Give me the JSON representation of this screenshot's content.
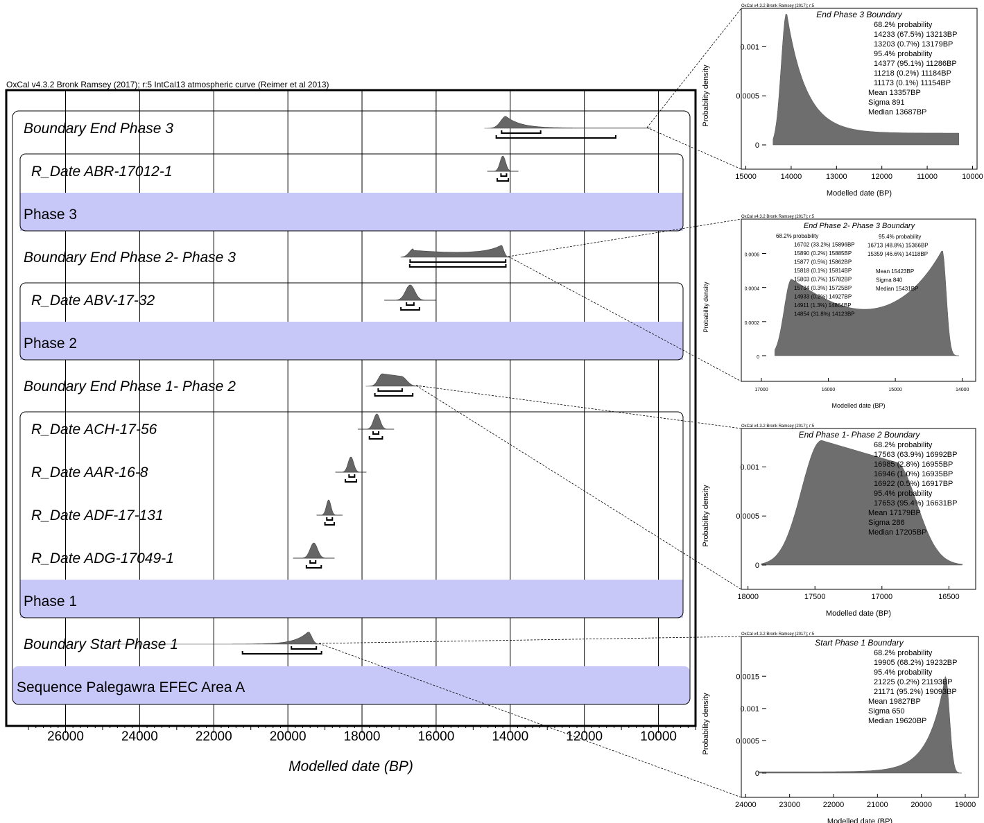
{
  "header": "OxCal v4.3.2 Bronk Ramsey (2017); r:5 IntCal13 atmospheric curve (Reimer et al 2013)",
  "main": {
    "xlabel": "Modelled date (BP)",
    "ticks": [
      "26000",
      "24000",
      "22000",
      "20000",
      "18000",
      "16000",
      "14000",
      "12000",
      "10000"
    ],
    "tick_values": [
      26000,
      24000,
      22000,
      20000,
      18000,
      16000,
      14000,
      12000,
      10000
    ],
    "xlim": [
      27600,
      9000
    ]
  },
  "rows": [
    {
      "label": "Boundary End Phase 3",
      "kind": "boundary"
    },
    {
      "label": "R_Date ABR-17012-1",
      "kind": "date"
    },
    {
      "label": "Phase 3",
      "kind": "phase"
    },
    {
      "label": "Boundary End Phase 2- Phase 3",
      "kind": "boundary"
    },
    {
      "label": "R_Date ABV-17-32",
      "kind": "date"
    },
    {
      "label": "Phase 2",
      "kind": "phase"
    },
    {
      "label": "Boundary End Phase 1- Phase 2",
      "kind": "boundary"
    },
    {
      "label": "R_Date ACH-17-56",
      "kind": "date"
    },
    {
      "label": "R_Date AAR-16-8",
      "kind": "date"
    },
    {
      "label": "R_Date ADF-17-131",
      "kind": "date"
    },
    {
      "label": "R_Date ADG-17049-1",
      "kind": "date"
    },
    {
      "label": "Phase 1",
      "kind": "phase"
    },
    {
      "label": "Boundary Start Phase 1",
      "kind": "boundary"
    },
    {
      "label": "Sequence Palegawra EFEC Area A",
      "kind": "sequence"
    }
  ],
  "insets": [
    {
      "title": "End Phase 3 Boundary",
      "ylabel": "Probability density",
      "xlabel": "Modelled date (BP)",
      "xticks": [
        "15000",
        "14000",
        "13000",
        "12000",
        "11000",
        "10000"
      ],
      "yticks": [
        "0.001",
        "0.0005",
        "0"
      ],
      "lines": [
        "68.2% probability",
        "14233 (67.5%) 13213BP",
        "13203 (0.7%) 13179BP",
        "95.4% probability",
        "14377 (95.1%) 11286BP",
        "11218 (0.2%) 11184BP",
        "11173 (0.1%) 11154BP",
        "Mean 13357BP",
        "Sigma 891",
        "Median 13687BP"
      ]
    },
    {
      "header": "OxCal v4.3.2 Bronk Ramsey (2017); r:5",
      "title": "End Phase 2- Phase 3 Boundary",
      "ylabel": "Probability density",
      "xlabel": "Modelled date (BP)",
      "xticks": [
        "17000",
        "16000",
        "15000",
        "14000"
      ],
      "yticks": [
        "0.0006",
        "0.0004",
        "0.0002",
        "0"
      ],
      "col1": [
        "68.2% probability",
        "16702 (33.2%) 15896BP",
        "15890 (0.2%) 15885BP",
        "15877 (0.5%) 15862BP",
        "15818 (0.1%) 15814BP",
        "15803 (0.7%) 15782BP",
        "15734 (0.3%) 15725BP",
        "14933 (0.2%) 14927BP",
        "14911 (1.3%) 14864BP",
        "14854 (31.8%) 14123BP"
      ],
      "col2": [
        "95.4% probability",
        "16713 (48.8%) 15366BP",
        "15359 (46.6%) 14118BP",
        "",
        "Mean 15423BP",
        "Sigma 840",
        "Median 15431BP"
      ]
    },
    {
      "header": "OxCal v4.3.2 Bronk Ramsey (2017); r:5",
      "title": "End Phase 1- Phase 2 Boundary",
      "ylabel": "Probability density",
      "xlabel": "Modelled date (BP)",
      "xticks": [
        "18000",
        "17500",
        "17000",
        "16500"
      ],
      "yticks": [
        "0.001",
        "0.0005",
        "0"
      ],
      "lines": [
        "68.2% probability",
        "17563 (63.9%) 16992BP",
        "16985 (2.8%) 16955BP",
        "16946 (1.0%) 16935BP",
        "16922 (0.5%) 16917BP",
        "95.4% probability",
        "17653 (95.4%) 16631BP",
        "Mean 17179BP",
        "Sigma 286",
        "Median 17205BP"
      ]
    },
    {
      "header": "OxCal v4.3.2 Bronk Ramsey (2017); r:5",
      "title": "Start Phase 1 Boundary",
      "ylabel": "Probability density",
      "xlabel": "Modelled date (BP)",
      "xticks": [
        "24000",
        "23000",
        "22000",
        "21000",
        "20000",
        "19000"
      ],
      "yticks": [
        "0.0015",
        "0.001",
        "0.0005",
        "0"
      ],
      "lines": [
        "68.2% probability",
        "19905 (68.2%) 19232BP",
        "95.4% probability",
        "21225 (0.2%) 21193BP",
        "21171 (95.2%) 19093BP",
        "Mean 19827BP",
        "Sigma 650",
        "Median 19620BP"
      ]
    }
  ],
  "chart_data": {
    "type": "area",
    "xlabel": "Modelled date (BP)",
    "xlim": [
      27600,
      9000
    ],
    "series": [
      {
        "name": "Boundary End Phase 3",
        "peak": 14100,
        "range95": [
          14377,
          11154
        ],
        "range68": [
          14233,
          13179
        ],
        "mean": 13357,
        "median": 13687
      },
      {
        "name": "R_Date ABR-17012-1",
        "peak": 14200,
        "range95": [
          14350,
          14050
        ],
        "range68": [
          14250,
          14100
        ]
      },
      {
        "name": "Boundary End Phase 2- Phase 3",
        "peak": 14200,
        "range95": [
          16713,
          14118
        ],
        "range68": [
          16702,
          14123
        ],
        "mean": 15423,
        "median": 15431
      },
      {
        "name": "R_Date ABV-17-32",
        "peak": 16700,
        "range95": [
          16950,
          16450
        ],
        "range68": [
          16800,
          16600
        ]
      },
      {
        "name": "Boundary End Phase 1- Phase 2",
        "peak": 17450,
        "range95": [
          17653,
          16631
        ],
        "range68": [
          17563,
          16917
        ],
        "mean": 17179,
        "median": 17205
      },
      {
        "name": "R_Date ACH-17-56",
        "peak": 17600,
        "range95": [
          17800,
          17450
        ],
        "range68": [
          17700,
          17550
        ]
      },
      {
        "name": "R_Date AAR-16-8",
        "peak": 18300,
        "range95": [
          18450,
          18150
        ],
        "range68": [
          18350,
          18200
        ]
      },
      {
        "name": "R_Date ADF-17-131",
        "peak": 18900,
        "range95": [
          19000,
          18750
        ],
        "range68": [
          18950,
          18800
        ]
      },
      {
        "name": "R_Date ADG-17049-1",
        "peak": 19300,
        "range95": [
          19500,
          19100
        ],
        "range68": [
          19400,
          19250
        ]
      },
      {
        "name": "Boundary Start Phase 1",
        "peak": 19450,
        "range95": [
          21225,
          19093
        ],
        "range68": [
          19905,
          19232
        ],
        "mean": 19827,
        "median": 19620
      }
    ]
  }
}
